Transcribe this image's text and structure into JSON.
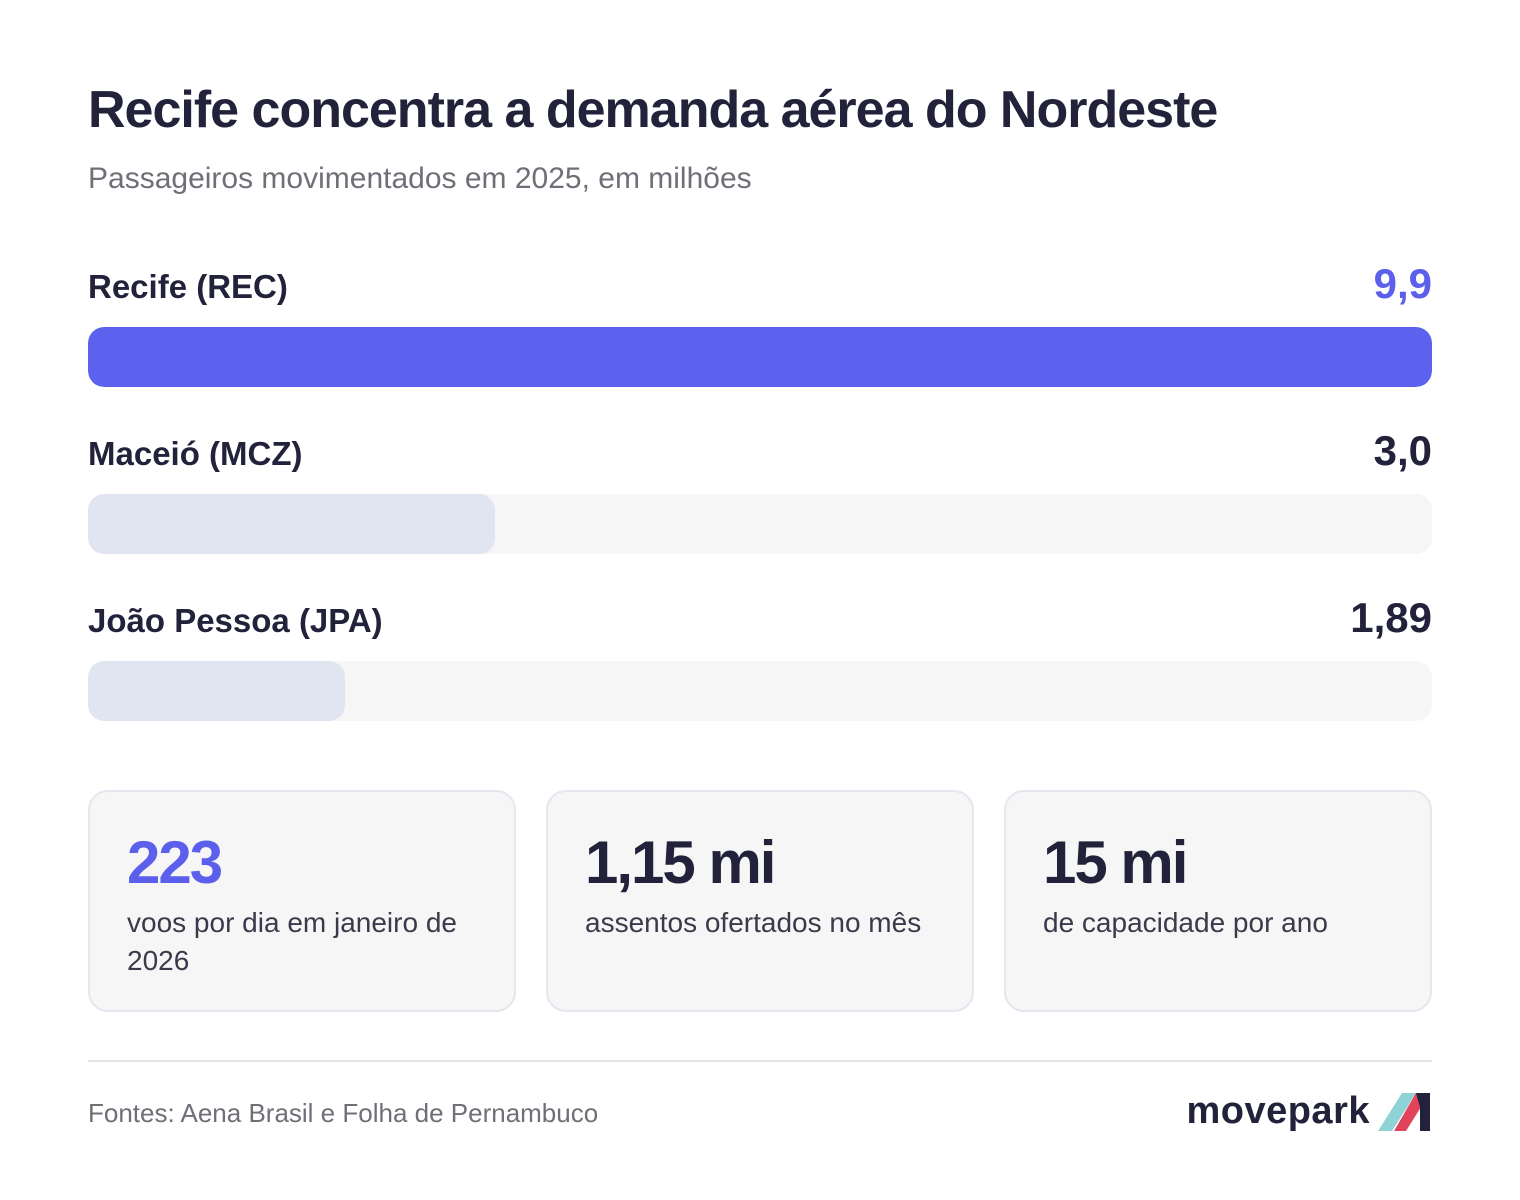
{
  "header": {
    "title": "Recife concentra a demanda aérea do Nordeste",
    "subtitle": "Passageiros movimentados em 2025, em milhões"
  },
  "chart_data": {
    "type": "bar",
    "orientation": "horizontal",
    "categories": [
      "Recife (REC)",
      "Maceió (MCZ)",
      "João Pessoa (JPA)"
    ],
    "values": [
      9.9,
      3.0,
      1.89
    ],
    "value_labels": [
      "9,9",
      "3,0",
      "1,89"
    ],
    "xlim": [
      0,
      9.9
    ],
    "highlight_color": "#5d62ee",
    "bar_color": "#e1e5f1",
    "track_color": "#f6f6f7",
    "grid": false,
    "legend": "none"
  },
  "stats": [
    {
      "value": "223",
      "text": "voos por dia em janeiro de 2026"
    },
    {
      "value": "1,15 mi",
      "text": "assentos ofertados no mês"
    },
    {
      "value": "15 mi",
      "text": "de capacidade por ano"
    }
  ],
  "footer": {
    "source": "Fontes: Aena Brasil e Folha de Pernambuco",
    "brand": "movepark",
    "brand_icon": "movepark-logo-icon"
  }
}
